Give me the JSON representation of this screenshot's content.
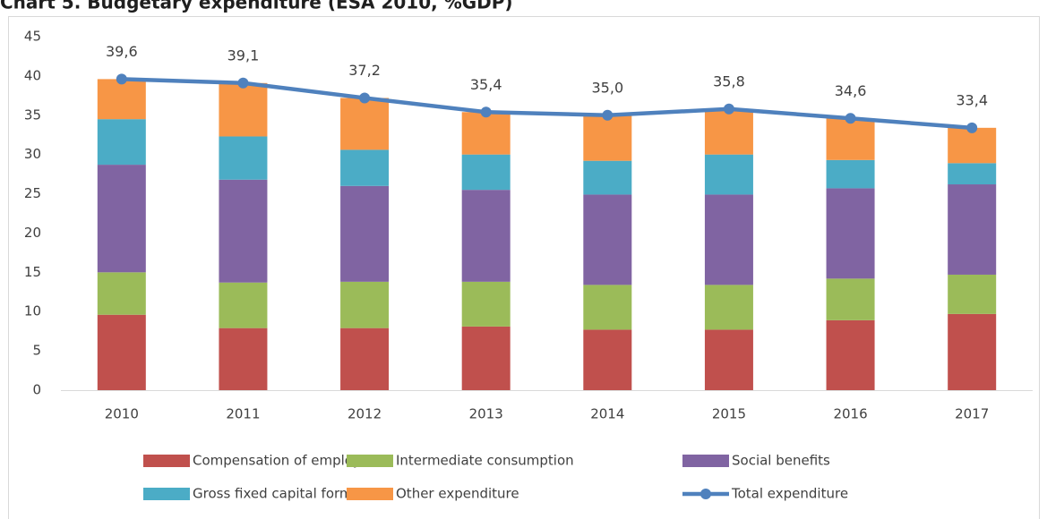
{
  "chart_data": {
    "type": "bar",
    "title": "Chart 5. Budgetary expenditure (ESA 2010, %GDP)",
    "categories": [
      "2010",
      "2011",
      "2012",
      "2013",
      "2014",
      "2015",
      "2016",
      "2017"
    ],
    "stacked": true,
    "series": [
      {
        "name": "Compensation of employees",
        "color": "#c0504d",
        "values": [
          9.6,
          7.9,
          7.9,
          8.1,
          7.7,
          7.7,
          8.9,
          9.7
        ]
      },
      {
        "name": "Intermediate consumption",
        "color": "#9bbb59",
        "values": [
          5.4,
          5.8,
          5.9,
          5.7,
          5.7,
          5.7,
          5.3,
          5.0
        ]
      },
      {
        "name": "Social benefits",
        "color": "#8064a2",
        "values": [
          13.7,
          13.1,
          12.2,
          11.7,
          11.5,
          11.5,
          11.5,
          11.5
        ]
      },
      {
        "name": "Gross fixed capital formation",
        "color": "#4bacc6",
        "values": [
          5.8,
          5.5,
          4.6,
          4.5,
          4.3,
          5.1,
          3.6,
          2.7
        ]
      },
      {
        "name": "Other expenditure",
        "color": "#f79646",
        "values": [
          5.1,
          6.8,
          6.6,
          5.4,
          5.8,
          5.8,
          5.3,
          4.5
        ]
      },
      {
        "name": "Total expenditure",
        "color": "#4f81bd",
        "type": "line",
        "values": [
          39.6,
          39.1,
          37.2,
          35.4,
          35.0,
          35.8,
          34.6,
          33.4
        ],
        "value_labels": [
          "39,6",
          "39,1",
          "37,2",
          "35,4",
          "35,0",
          "35,8",
          "34,6",
          "33,4"
        ]
      }
    ],
    "ylim": [
      0,
      45
    ],
    "yticks": [
      0,
      5,
      10,
      15,
      20,
      25,
      30,
      35,
      40,
      45
    ],
    "grid": false,
    "legend": "bottom"
  }
}
